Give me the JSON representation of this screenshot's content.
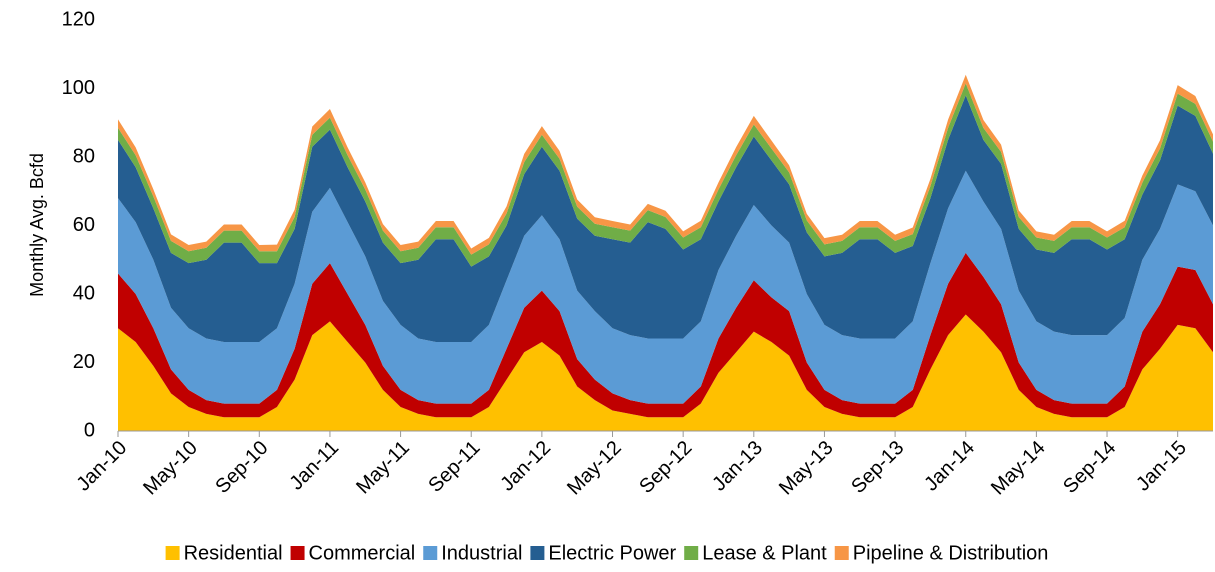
{
  "chart_data": {
    "type": "stacked_area",
    "y_label": "Monthly Avg. Bcfd",
    "categories": [
      "Jan-10",
      null,
      null,
      null,
      "May-10",
      null,
      null,
      null,
      "Sep-10",
      null,
      null,
      null,
      "Jan-11",
      null,
      null,
      null,
      "May-11",
      null,
      null,
      null,
      "Sep-11",
      null,
      null,
      null,
      "Jan-12",
      null,
      null,
      null,
      "May-12",
      null,
      null,
      null,
      "Sep-12",
      null,
      null,
      null,
      "Jan-13",
      null,
      null,
      null,
      "May-13",
      null,
      null,
      null,
      "Sep-13",
      null,
      null,
      null,
      "Jan-14",
      null,
      null,
      null,
      "May-14",
      null,
      null,
      null,
      "Sep-14",
      null,
      null,
      null,
      "Jan-15",
      null,
      null
    ],
    "ylim": [
      0,
      120
    ],
    "yticks": [
      0,
      20,
      40,
      60,
      80,
      100,
      120
    ],
    "series": [
      {
        "name": "Residential",
        "color": "#ffc000",
        "values": [
          30,
          26,
          19,
          11,
          7,
          5,
          4,
          4,
          4,
          7,
          15,
          28,
          32,
          26,
          20,
          12,
          7,
          5,
          4,
          4,
          4,
          7,
          15,
          23,
          26,
          22,
          13,
          9,
          6,
          5,
          4,
          4,
          4,
          8,
          17,
          23,
          29,
          26,
          22,
          12,
          7,
          5,
          4,
          4,
          4,
          7,
          18,
          28,
          34,
          29,
          23,
          12,
          7,
          5,
          4,
          4,
          4,
          7,
          18,
          24,
          31,
          30,
          23
        ]
      },
      {
        "name": "Commercial",
        "color": "#c00000",
        "values": [
          16,
          14,
          11,
          7,
          5,
          4,
          4,
          4,
          4,
          5,
          9,
          15,
          17,
          14,
          11,
          7,
          5,
          4,
          4,
          4,
          4,
          5,
          9,
          13,
          15,
          13,
          8,
          6,
          5,
          4,
          4,
          4,
          4,
          5,
          10,
          13,
          15,
          13,
          13,
          8,
          5,
          4,
          4,
          4,
          4,
          5,
          10,
          15,
          18,
          16,
          14,
          8,
          5,
          4,
          4,
          4,
          4,
          6,
          11,
          13,
          17,
          17,
          14
        ]
      },
      {
        "name": "Industrial",
        "color": "#5b9bd5",
        "values": [
          22,
          21,
          20,
          18,
          18,
          18,
          18,
          18,
          18,
          18,
          19,
          21,
          22,
          21,
          20,
          19,
          19,
          18,
          18,
          18,
          18,
          19,
          20,
          21,
          22,
          21,
          20,
          20,
          19,
          19,
          19,
          19,
          19,
          19,
          20,
          21,
          22,
          21,
          20,
          20,
          19,
          19,
          19,
          19,
          19,
          20,
          21,
          22,
          24,
          22,
          22,
          21,
          20,
          20,
          20,
          20,
          20,
          20,
          21,
          22,
          24,
          23,
          23
        ]
      },
      {
        "name": "Electric Power",
        "color": "#255e91",
        "values": [
          17,
          16,
          15,
          16,
          19,
          23,
          29,
          29,
          23,
          19,
          16,
          19,
          17,
          16,
          16,
          17,
          18,
          23,
          30,
          30,
          22,
          20,
          16,
          18,
          20,
          20,
          21,
          22,
          26,
          27,
          34,
          32,
          26,
          24,
          20,
          20,
          20,
          19,
          17,
          18,
          20,
          24,
          29,
          29,
          25,
          22,
          19,
          20,
          22,
          18,
          19,
          18,
          21,
          23,
          28,
          28,
          25,
          23,
          19,
          20,
          23,
          22,
          21
        ]
      },
      {
        "name": "Lease & Plant",
        "color": "#70ad47",
        "values": [
          3.5,
          3.5,
          3.5,
          3.5,
          3.5,
          3.5,
          3.5,
          3.5,
          3.5,
          3.5,
          3.5,
          3.5,
          3.5,
          3.5,
          3.5,
          3.5,
          3.5,
          3.5,
          3.5,
          3.5,
          3.5,
          3.5,
          3.5,
          3.5,
          3.5,
          3.5,
          3.5,
          3.5,
          3.5,
          3.5,
          3.5,
          3.5,
          3.5,
          3.5,
          3.5,
          3.5,
          3.5,
          3.5,
          3.5,
          3.5,
          3.5,
          3.5,
          3.5,
          3.5,
          3.5,
          3.5,
          3.5,
          3.5,
          3.5,
          3.5,
          3.5,
          3.5,
          3.5,
          3.5,
          3.5,
          3.5,
          3.5,
          3.5,
          3.5,
          3.5,
          3.5,
          3.5,
          3.5
        ]
      },
      {
        "name": "Pipeline & Distribution",
        "color": "#f79646",
        "values": [
          2.5,
          2.3,
          2.1,
          1.9,
          1.8,
          1.8,
          1.8,
          1.8,
          1.8,
          1.9,
          2.1,
          2.4,
          2.5,
          2.3,
          2.1,
          1.9,
          1.8,
          1.8,
          1.8,
          1.8,
          1.8,
          1.9,
          2.1,
          2.4,
          2.5,
          2.3,
          2.1,
          1.9,
          1.8,
          1.8,
          1.8,
          1.8,
          1.8,
          1.9,
          2.1,
          2.4,
          2.5,
          2.3,
          2.1,
          1.9,
          1.8,
          1.8,
          1.8,
          1.8,
          1.8,
          1.9,
          2.1,
          2.4,
          2.5,
          2.3,
          2.1,
          1.9,
          1.8,
          1.8,
          1.8,
          1.8,
          1.8,
          1.9,
          2.1,
          2.4,
          2.5,
          2.3,
          2.1
        ]
      }
    ]
  }
}
